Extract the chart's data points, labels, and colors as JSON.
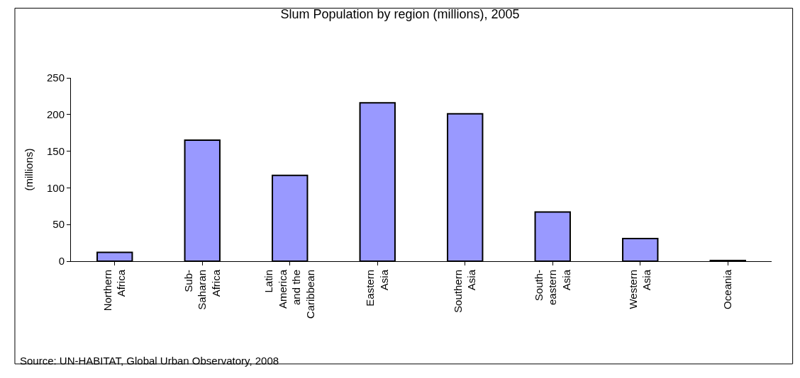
{
  "chart_data": {
    "type": "bar",
    "title": "Slum Population by region (millions), 2005",
    "ylabel": "(millions)",
    "categories": [
      "Northern Africa",
      "Sub-Saharan Africa",
      "Latin America and the Caribbean",
      "Eastern Asia",
      "Southern Asia",
      "South-eastern Asia",
      "Western Asia",
      "Oceania"
    ],
    "values": [
      12,
      165,
      117,
      216,
      201,
      67,
      31,
      1
    ],
    "color": "#9999ff",
    "ylim": [
      0,
      250
    ],
    "yticks": [
      0,
      50,
      100,
      150,
      200,
      250
    ],
    "annotations": [
      "Source: UN-HABITAT, Global Urban Observatory, 2008"
    ]
  }
}
